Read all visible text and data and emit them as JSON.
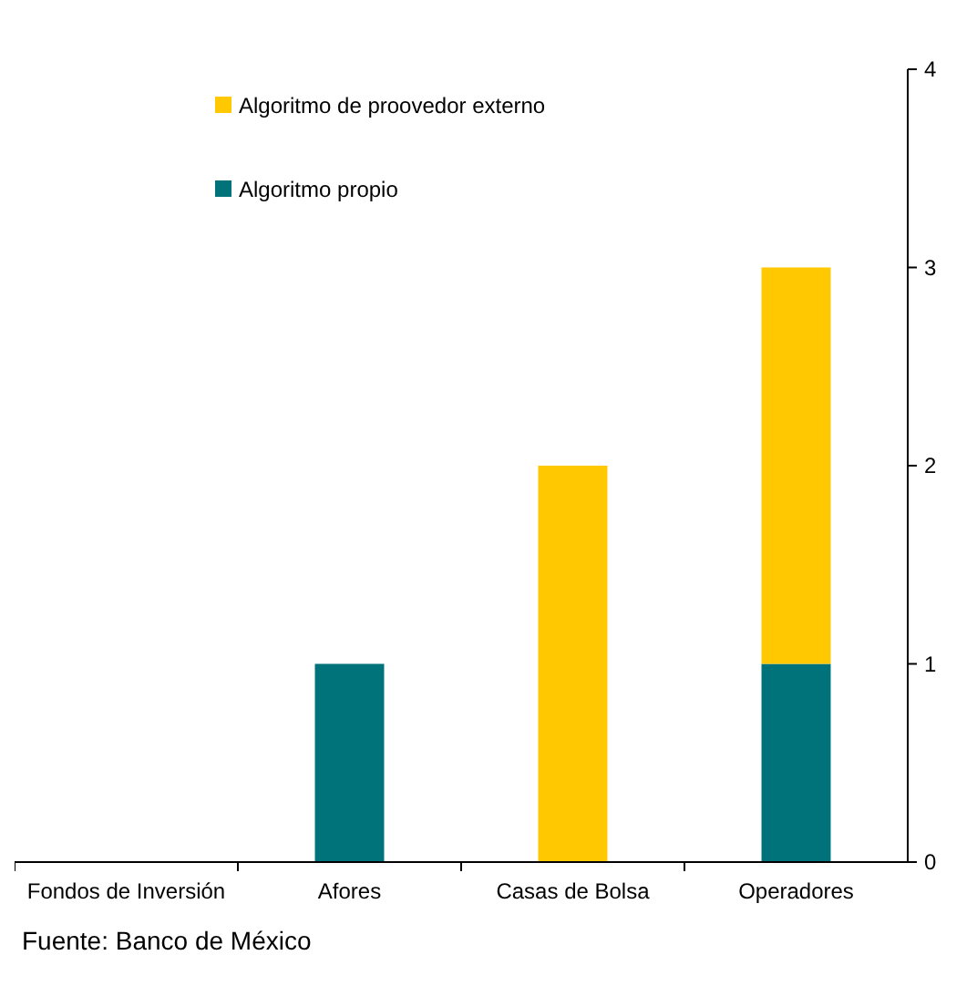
{
  "chart_data": {
    "type": "bar",
    "stacked": true,
    "categories": [
      "Fondos de Inversión",
      "Afores",
      "Casas de Bolsa",
      "Operadores"
    ],
    "series": [
      {
        "name": "Algoritmo propio",
        "color": "#00737a",
        "values": [
          0,
          1,
          0,
          1
        ]
      },
      {
        "name": "Algoritmo de proovedor externo",
        "color": "#ffc800",
        "values": [
          0,
          0,
          2,
          2
        ]
      }
    ],
    "ylim": [
      0,
      4
    ],
    "yticks": [
      0,
      1,
      2,
      3,
      4
    ],
    "grid": false,
    "legend": "top left",
    "annotations": [
      "Fuente: Banco de México"
    ]
  }
}
